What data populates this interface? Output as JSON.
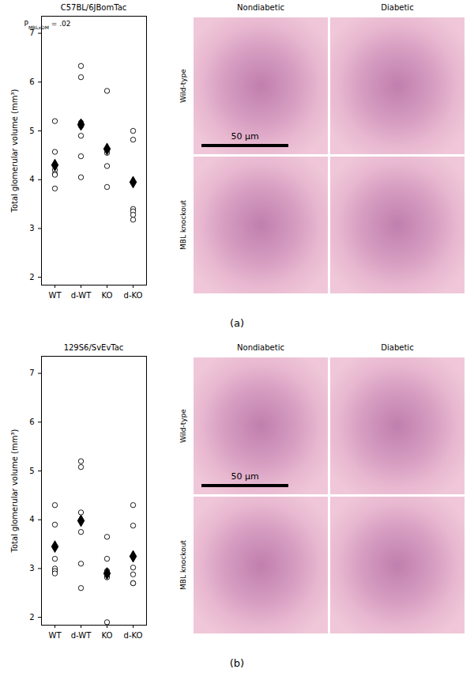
{
  "chart_data": [
    {
      "type": "scatter",
      "title": "C57BL/6JBomTac",
      "ylabel": "Total glomerular volume (mm³)",
      "annotation": {
        "text": "P",
        "subscript": "MBLxDM",
        "suffix": " = .02"
      },
      "categories": [
        "WT",
        "d-WT",
        "KO",
        "d-KO"
      ],
      "series": [
        {
          "marker": "circle",
          "color": "#000000",
          "values": [
            [
              5.2,
              4.57,
              4.2,
              4.12,
              4.1,
              3.82
            ],
            [
              6.33,
              6.1,
              5.17,
              5.1,
              4.9,
              4.48,
              4.05
            ],
            [
              5.82,
              4.62,
              4.55,
              4.28,
              3.85
            ],
            [
              5.0,
              4.82,
              3.4,
              3.35,
              3.28,
              3.18
            ]
          ]
        },
        {
          "marker": "diamond",
          "color": "#000000",
          "values": [
            4.3,
            5.13,
            4.63,
            3.95
          ]
        }
      ],
      "ylim": [
        1.84,
        7.35
      ],
      "yticks": [
        2,
        3,
        4,
        5,
        6,
        7
      ]
    },
    {
      "type": "scatter",
      "title": "129S6/SvEvTac",
      "ylabel": "Total glomerular volume (mm³)",
      "categories": [
        "WT",
        "d-WT",
        "KO",
        "d-KO"
      ],
      "series": [
        {
          "marker": "circle",
          "color": "#000000",
          "values": [
            [
              4.3,
              3.9,
              3.2,
              3.0,
              2.95,
              2.9
            ],
            [
              5.2,
              5.08,
              4.15,
              3.75,
              3.1,
              2.6
            ],
            [
              3.65,
              3.2,
              2.95,
              2.9,
              2.85,
              2.82,
              1.9
            ],
            [
              4.3,
              3.88,
              3.02,
              2.88,
              2.7,
              2.7
            ]
          ]
        },
        {
          "marker": "diamond",
          "color": "#000000",
          "values": [
            3.45,
            3.98,
            2.9,
            3.25
          ]
        }
      ],
      "ylim": [
        1.84,
        7.35
      ],
      "yticks": [
        2,
        3,
        4,
        5,
        6,
        7
      ]
    }
  ],
  "panels": [
    {
      "label": "(a)",
      "micrographs": {
        "columns": [
          "Nondiabetic",
          "Diabetic"
        ],
        "rows": [
          "Wild-type",
          "MBL knockout"
        ],
        "scale_bar": "50 μm"
      }
    },
    {
      "label": "(b)",
      "micrographs": {
        "columns": [
          "Nondiabetic",
          "Diabetic"
        ],
        "rows": [
          "Wild-type",
          "MBL knockout"
        ],
        "scale_bar": "50 μm"
      }
    }
  ]
}
